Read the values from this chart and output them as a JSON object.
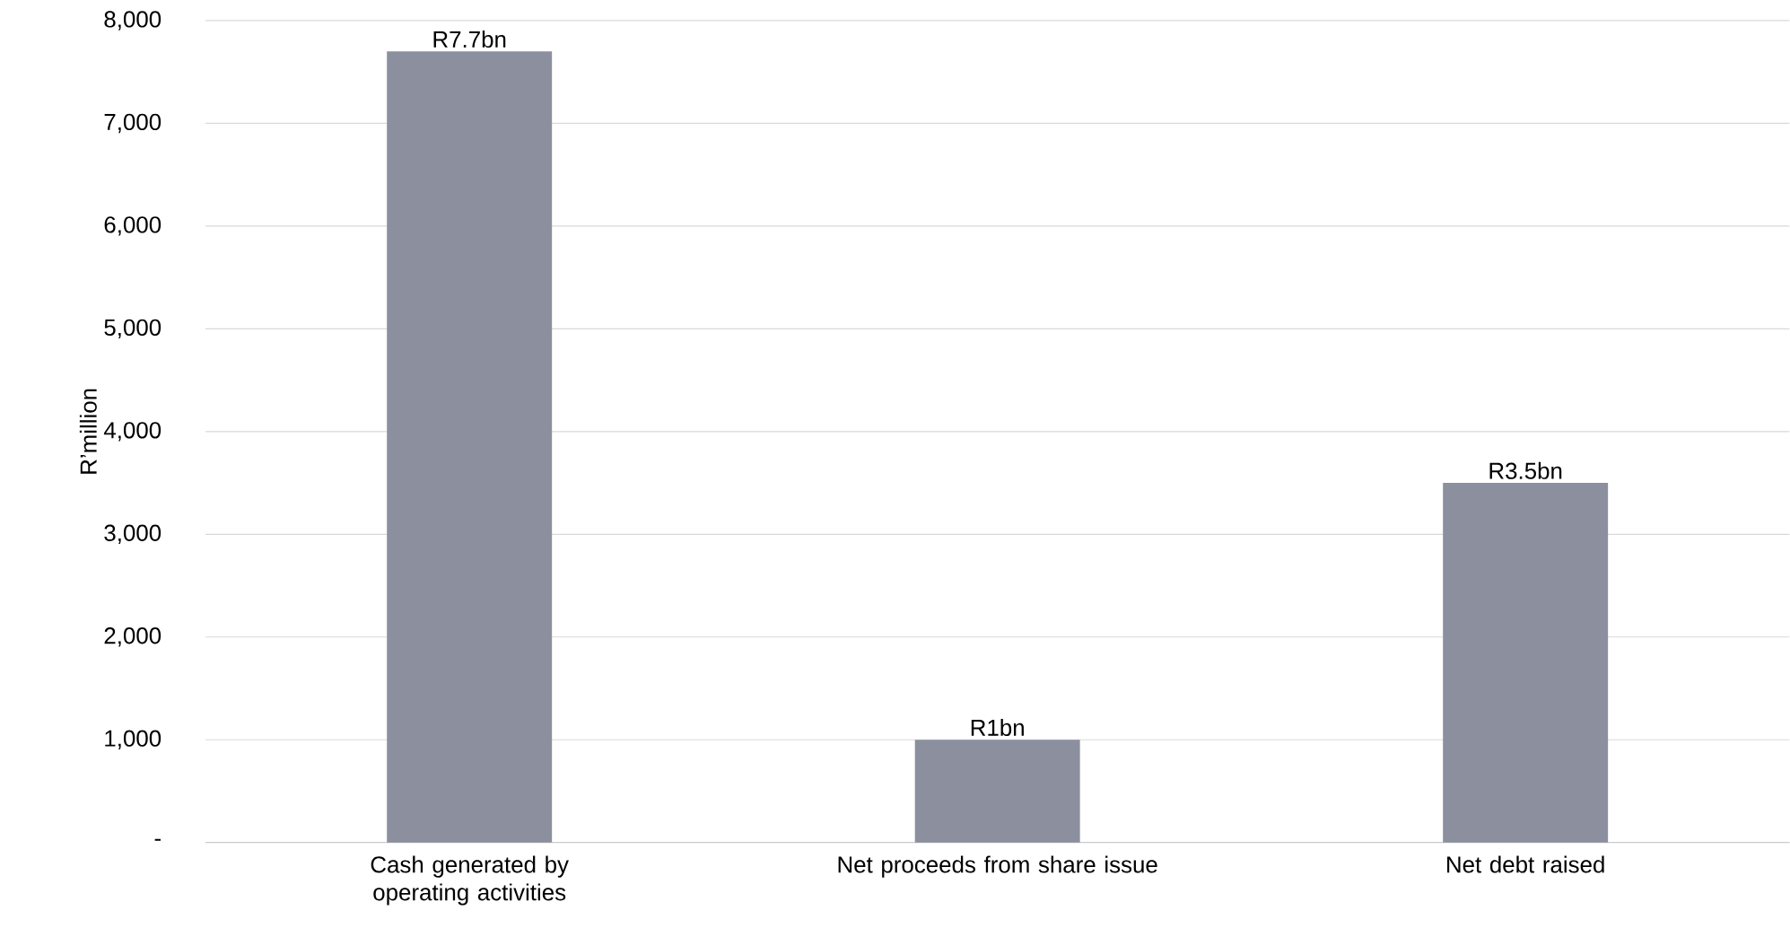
{
  "chart_data": {
    "type": "bar",
    "ylabel": "R’million",
    "categories": [
      "Cash generated by operating activities",
      "Net proceeds from share issue",
      "Net debt raised"
    ],
    "values": [
      7700,
      1000,
      3500
    ],
    "value_labels": [
      "R7.7bn",
      "R1bn",
      "R3.5bn"
    ],
    "color": "#8c8f9e",
    "ylim": [
      0,
      8000
    ],
    "yticks": [
      {
        "value": 0,
        "label": "-"
      },
      {
        "value": 1000,
        "label": "1,000"
      },
      {
        "value": 2000,
        "label": "2,000"
      },
      {
        "value": 3000,
        "label": "3,000"
      },
      {
        "value": 4000,
        "label": "4,000"
      },
      {
        "value": 5000,
        "label": "5,000"
      },
      {
        "value": 6000,
        "label": "6,000"
      },
      {
        "value": 7000,
        "label": "7,000"
      },
      {
        "value": 8000,
        "label": "8,000"
      }
    ],
    "grid": "y"
  }
}
